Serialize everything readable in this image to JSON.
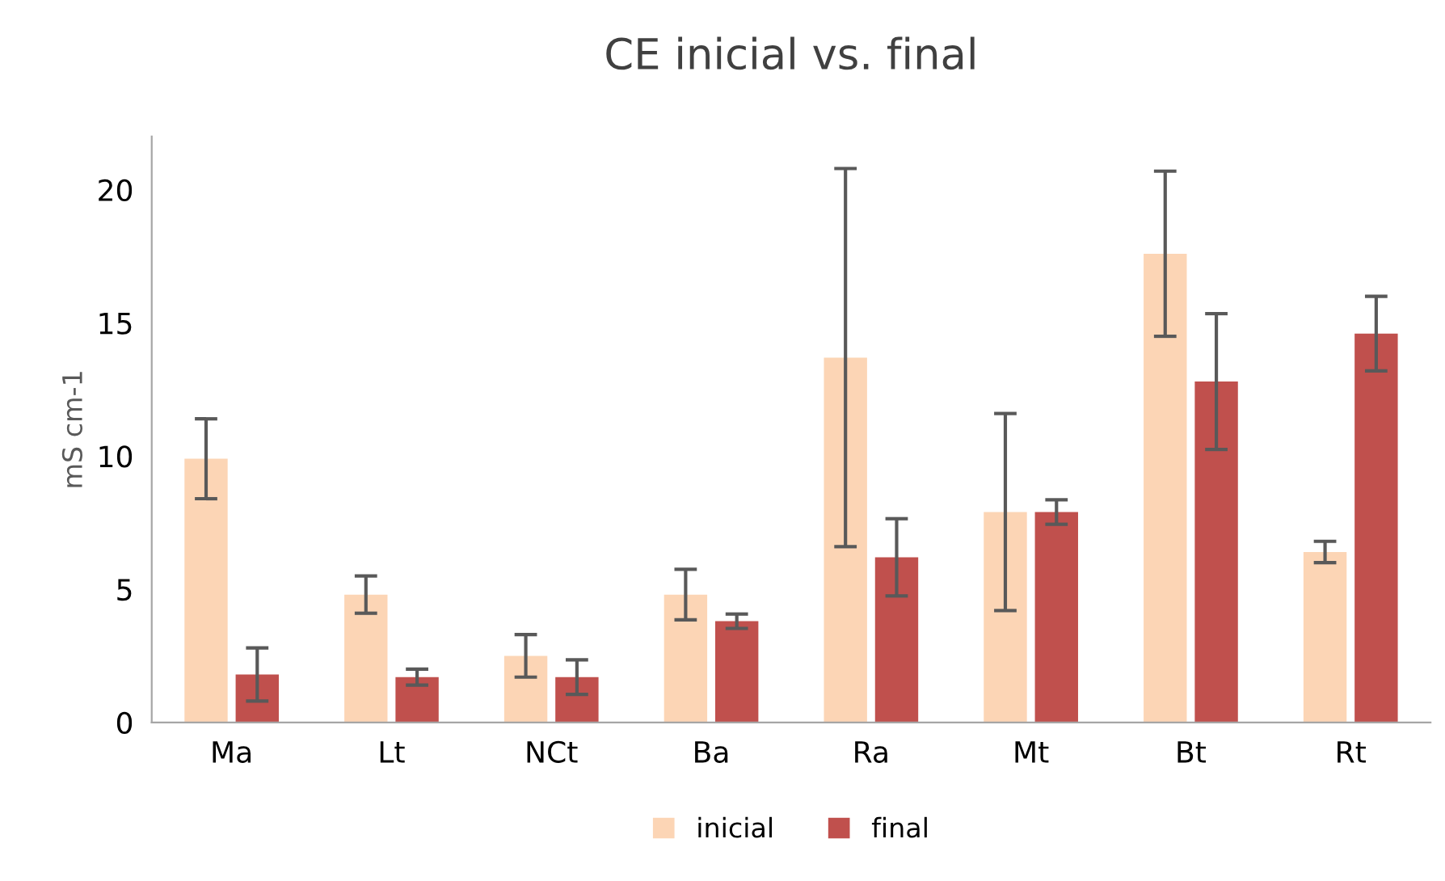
{
  "chart_data": {
    "type": "bar",
    "title": "CE inicial vs. final",
    "ylabel": "mS cm-1",
    "categories": [
      "Ma",
      "Lt",
      "NCt",
      "Ba",
      "Ra",
      "Mt",
      "Bt",
      "Rt"
    ],
    "series": [
      {
        "name": "inicial",
        "color": "#fcd5b5",
        "values": [
          9.9,
          4.8,
          2.5,
          4.8,
          13.7,
          7.9,
          17.6,
          6.4
        ],
        "errors": [
          1.5,
          0.7,
          0.8,
          0.95,
          7.1,
          3.7,
          3.1,
          0.4
        ]
      },
      {
        "name": "final",
        "color": "#c0504d",
        "values": [
          1.8,
          1.7,
          1.7,
          3.8,
          6.2,
          7.9,
          12.8,
          14.6
        ],
        "errors": [
          1.0,
          0.3,
          0.65,
          0.27,
          1.45,
          0.46,
          2.55,
          1.4
        ]
      }
    ],
    "ylim": [
      0,
      22
    ],
    "yticks": [
      0,
      5,
      10,
      15,
      20
    ],
    "grid": false,
    "legend": "bottom"
  }
}
